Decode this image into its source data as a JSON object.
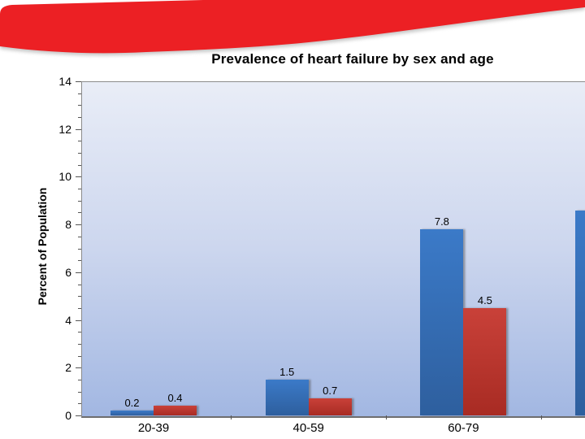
{
  "banner": {
    "color": "#ec2024"
  },
  "chart_data": {
    "type": "bar",
    "title": "Prevalence of heart failure by sex and age",
    "xlabel": "",
    "ylabel": "Percent of Population",
    "ylim": [
      0,
      14
    ],
    "y_major_step": 2,
    "y_minor_step": 0.5,
    "y_tick_labels": [
      "0",
      "2",
      "4",
      "6",
      "8",
      "10",
      "12",
      "14"
    ],
    "categories": [
      "20-39",
      "40-59",
      "60-79",
      ""
    ],
    "series": [
      {
        "name": "blue-series",
        "color_top": "#3b7ac8",
        "color_bottom": "#2e5f9e",
        "values": [
          0.2,
          1.5,
          7.8,
          8.6
        ],
        "data_labels": [
          "0.2",
          "1.5",
          "7.8",
          ""
        ]
      },
      {
        "name": "red-series",
        "color_top": "#c94139",
        "color_bottom": "#a82b23",
        "values": [
          0.4,
          0.7,
          4.5,
          null
        ],
        "data_labels": [
          "0.4",
          "0.7",
          "4.5",
          ""
        ]
      }
    ],
    "grid": false,
    "legend": "none-visible",
    "plot_bg_top": "#e9edf7",
    "plot_bg_bottom": "#a2b7e2",
    "note": "fourth category group is cut off at the right slide edge; only part of its blue bar is visible, no value label or category label shown"
  }
}
